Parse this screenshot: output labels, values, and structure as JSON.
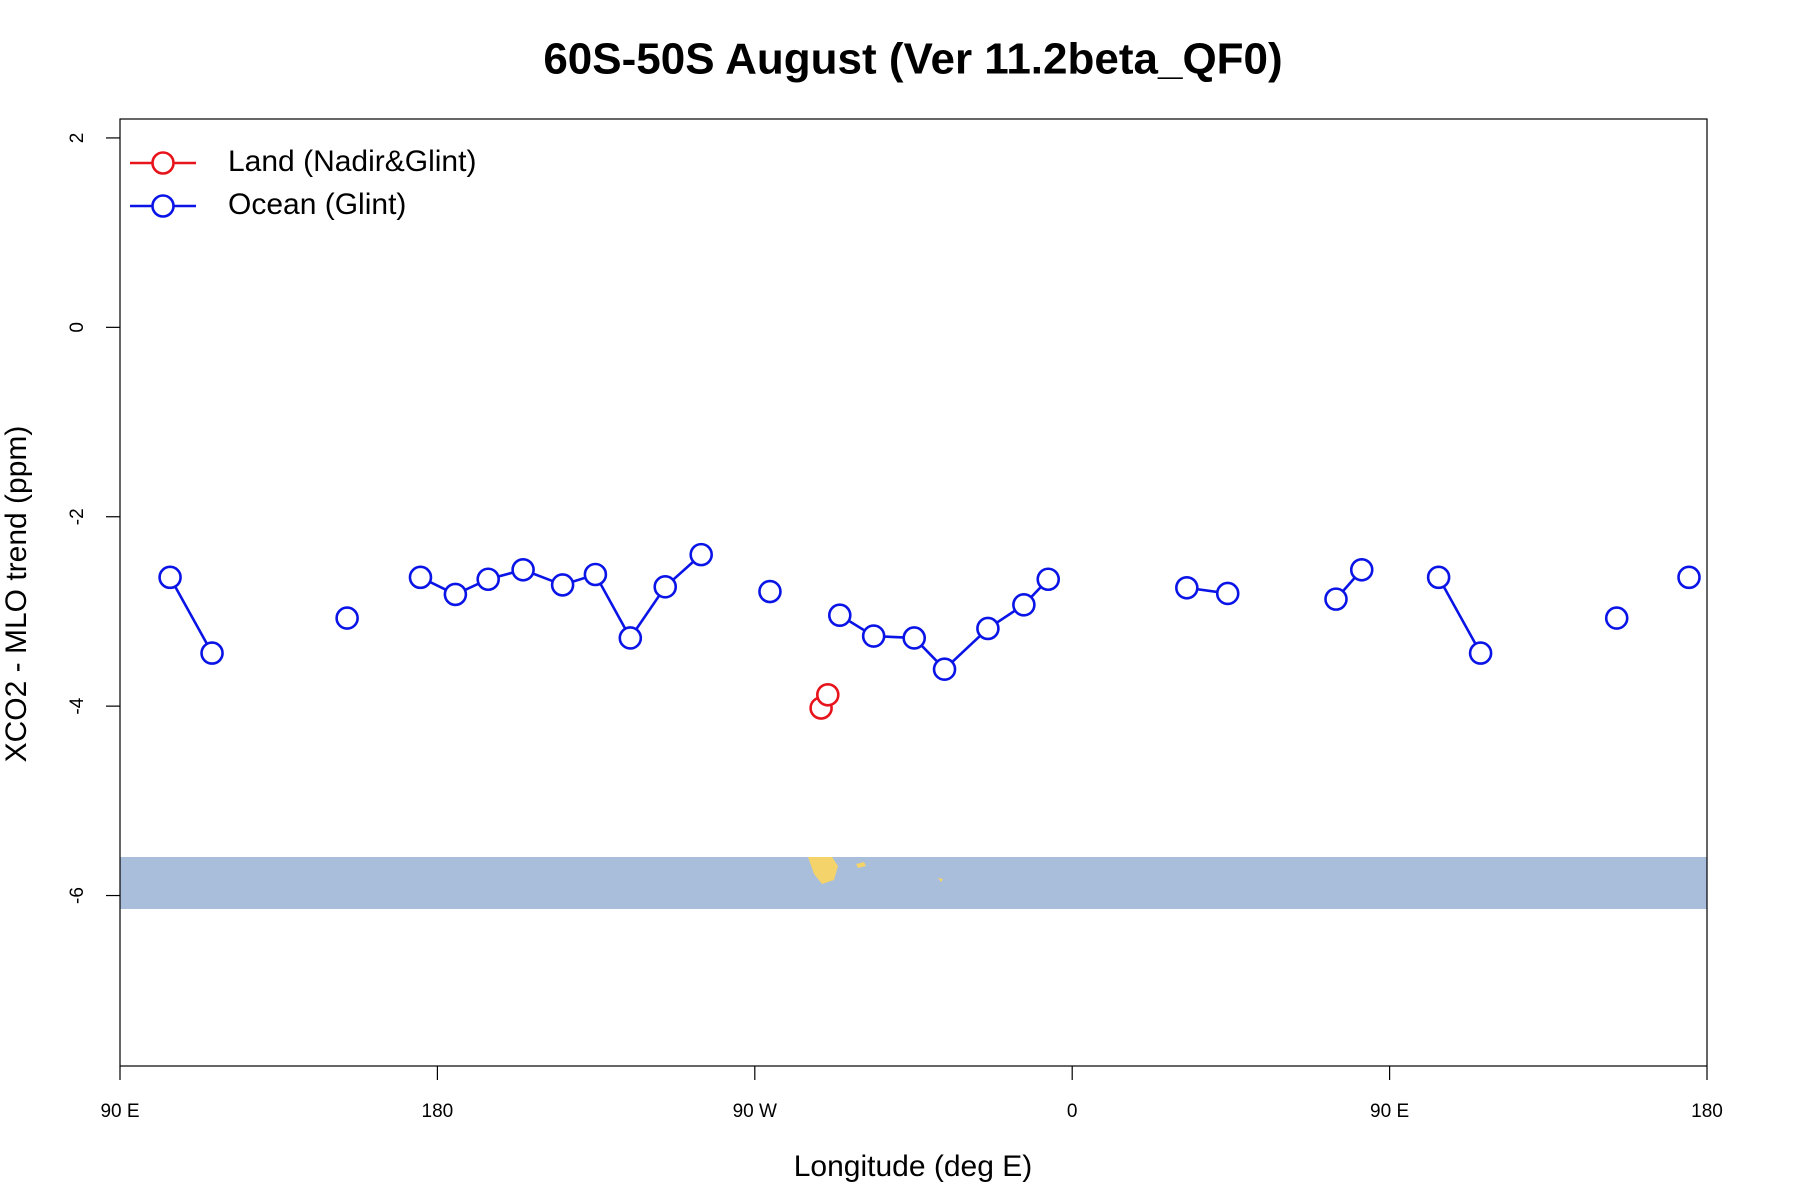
{
  "chart_data": {
    "type": "line",
    "title": "60S-50S August (Ver 11.2beta_QF0)",
    "x_label": "Longitude (deg E)",
    "y_label": "XCO2 - MLO trend (ppm)",
    "xlim": [
      90,
      540
    ],
    "xticks": [
      {
        "value": 90,
        "label": "90 E"
      },
      {
        "value": 180,
        "label": "180"
      },
      {
        "value": 270,
        "label": "90 W"
      },
      {
        "value": 360,
        "label": "0"
      },
      {
        "value": 450,
        "label": "90 E"
      },
      {
        "value": 540,
        "label": "180"
      }
    ],
    "ylim": [
      -7.8,
      2.2
    ],
    "yticks": [
      -6,
      -4,
      -2,
      0,
      2
    ],
    "legend": "top-left",
    "series": [
      {
        "name": "Land (Nadir&Glint)",
        "color": "#e8141c",
        "x": [
          288.8,
          290.7
        ],
        "values": [
          -4.02,
          -3.88
        ]
      },
      {
        "name": "Ocean (Glint)",
        "color": "#0a14e6",
        "x": [
          104.2,
          116.1,
          null,
          154.4,
          null,
          175.2,
          185.1,
          194.4,
          204.3,
          215.5,
          224.8,
          234.7,
          244.6,
          254.8,
          null,
          274.3,
          null,
          294.1,
          303.7,
          315.2,
          323.8,
          336.1,
          346.3,
          353.2,
          null,
          392.5,
          404.1,
          null,
          434.8,
          442.1,
          null,
          463.9,
          475.8,
          null,
          514.4,
          null,
          534.9
        ],
        "values": [
          -2.64,
          -3.44,
          null,
          -3.07,
          null,
          -2.64,
          -2.82,
          -2.66,
          -2.56,
          -2.72,
          -2.61,
          -3.28,
          -2.74,
          -2.4,
          null,
          -2.79,
          null,
          -3.04,
          -3.26,
          -3.28,
          -3.61,
          -3.18,
          -2.93,
          -2.66,
          null,
          -2.75,
          -2.81,
          null,
          -2.87,
          -2.56,
          null,
          -2.64,
          -3.44,
          null,
          -3.07,
          null,
          -2.64
        ]
      }
    ]
  }
}
